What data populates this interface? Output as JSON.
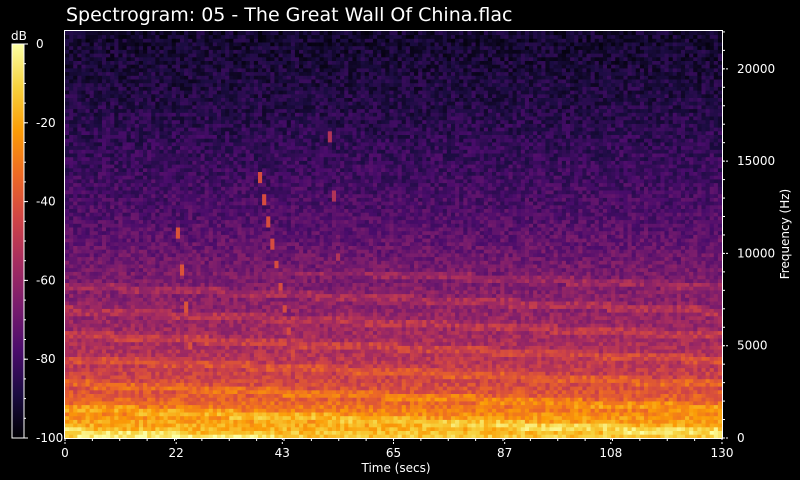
{
  "chart_data": {
    "type": "heatmap",
    "title": "Spectrogram: 05 - The Great Wall Of China.flac",
    "xlabel": "Time (secs)",
    "ylabel": "Frequency (Hz)",
    "colorbar_label": "dB",
    "xlim": [
      0,
      130
    ],
    "ylim": [
      0,
      22050
    ],
    "clim": [
      -100,
      0
    ],
    "x_ticks": [
      {
        "value": 0,
        "label": "0"
      },
      {
        "value": 22,
        "label": "22"
      },
      {
        "value": 43,
        "label": "43"
      },
      {
        "value": 65,
        "label": "65"
      },
      {
        "value": 87,
        "label": "87"
      },
      {
        "value": 108,
        "label": "108"
      },
      {
        "value": 130,
        "label": "130"
      }
    ],
    "y_ticks": [
      {
        "value": 0,
        "label": "0"
      },
      {
        "value": 5000,
        "label": "5000"
      },
      {
        "value": 10000,
        "label": "10000"
      },
      {
        "value": 15000,
        "label": "15000"
      },
      {
        "value": 20000,
        "label": "20000"
      }
    ],
    "colorbar_ticks": [
      {
        "value": 0,
        "label": "0"
      },
      {
        "value": -20,
        "label": "-20"
      },
      {
        "value": -40,
        "label": "-40"
      },
      {
        "value": -60,
        "label": "-60"
      },
      {
        "value": -80,
        "label": "-80"
      },
      {
        "value": -100,
        "label": "-100"
      }
    ],
    "colormap": [
      "#000004",
      "#1b0c41",
      "#4a0c6b",
      "#781c6d",
      "#a52c60",
      "#cf4446",
      "#ed6925",
      "#fb9b06",
      "#f7d13d",
      "#fcffa4"
    ],
    "spectral_profile": [
      {
        "freq": 0,
        "db": -12
      },
      {
        "freq": 1000,
        "db": -22
      },
      {
        "freq": 2000,
        "db": -35
      },
      {
        "freq": 3000,
        "db": -44
      },
      {
        "freq": 4500,
        "db": -52
      },
      {
        "freq": 6000,
        "db": -58
      },
      {
        "freq": 8000,
        "db": -64
      },
      {
        "freq": 10000,
        "db": -70
      },
      {
        "freq": 12000,
        "db": -76
      },
      {
        "freq": 15000,
        "db": -82
      },
      {
        "freq": 18000,
        "db": -87
      },
      {
        "freq": 22050,
        "db": -92
      }
    ],
    "glides": [
      {
        "t_start": 22,
        "t_end": 26,
        "f_start": 12000,
        "f_end": 2000,
        "db": -40
      },
      {
        "t_start": 38,
        "t_end": 47,
        "f_start": 15000,
        "f_end": 1800,
        "db": -42
      },
      {
        "t_start": 52,
        "t_end": 55,
        "f_start": 18000,
        "f_end": 6000,
        "db": -52
      }
    ],
    "tick_dash_style": "white-dashed",
    "background": "#000000"
  }
}
